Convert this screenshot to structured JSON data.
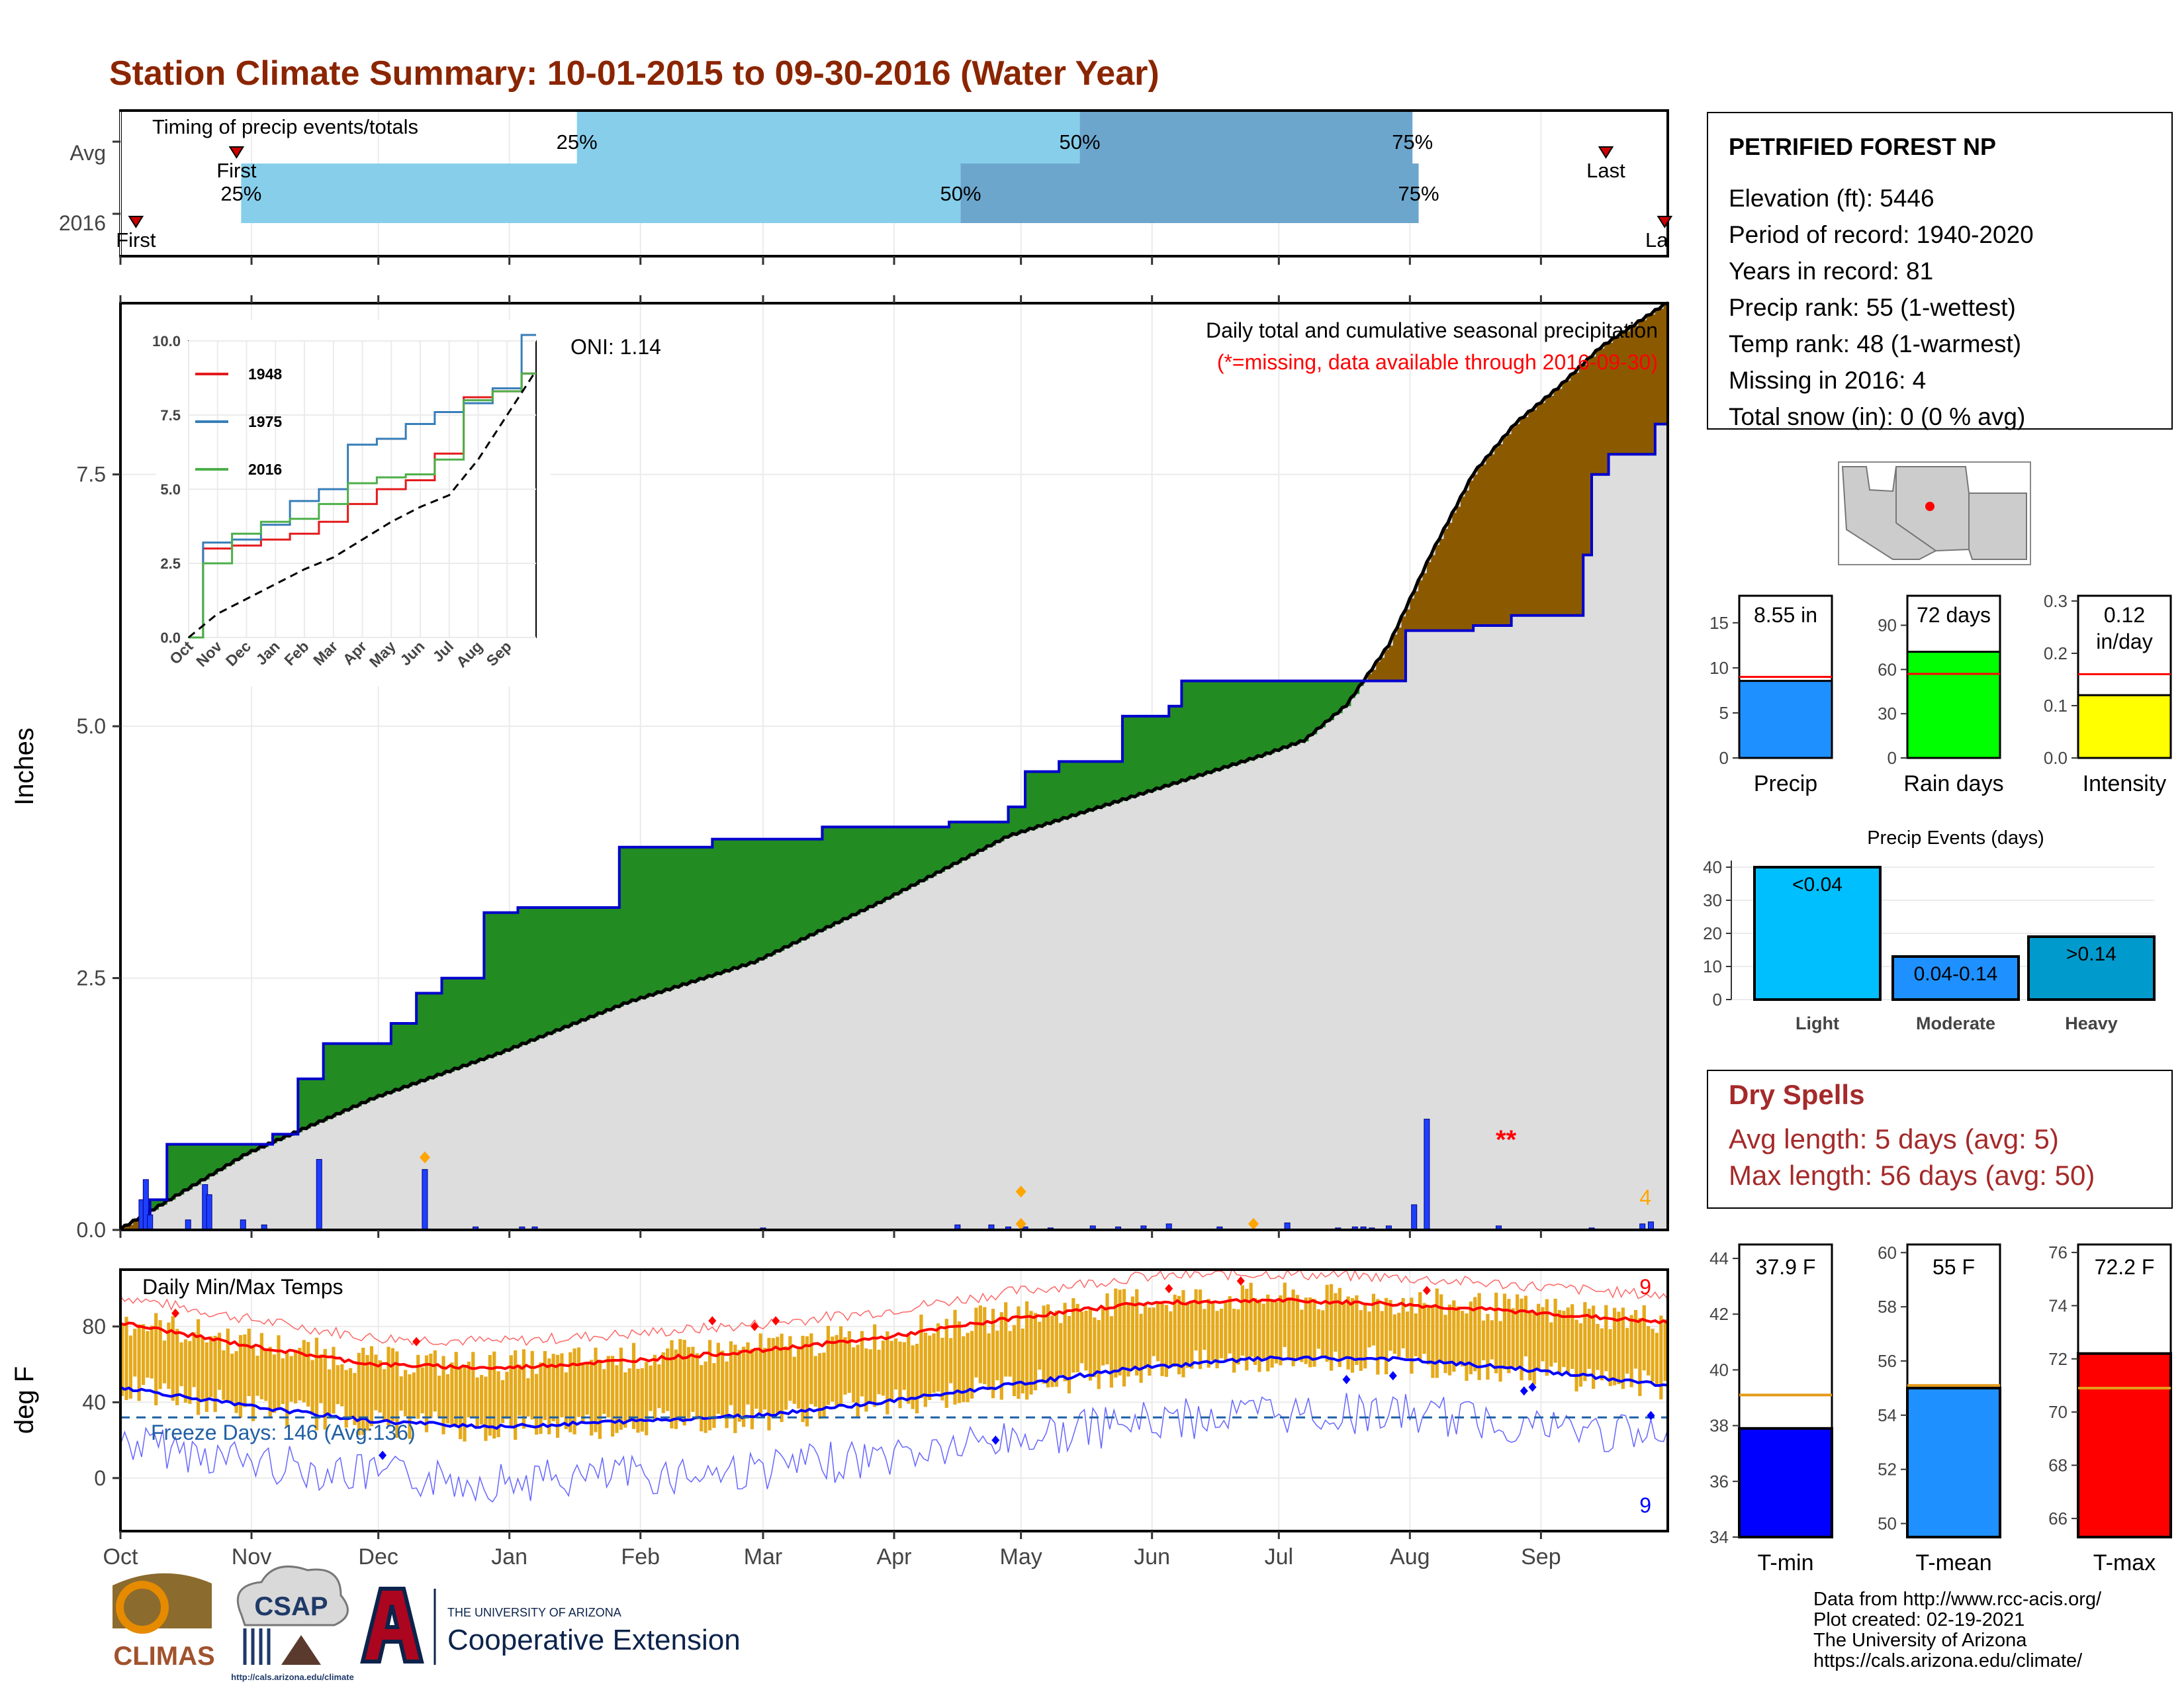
{
  "title": "Station Climate Summary: 10-01-2015 to 09-30-2016 (Water Year)",
  "colors": {
    "title": "#8B2500",
    "precip_fill": "#228B22",
    "cum_line": "#0000CD",
    "deficit_fill": "#8B5A00",
    "climo_fill": "#DDDDDD",
    "q_light": "#87CEEB",
    "q_dark": "#6CA6CD",
    "tmax": "#FF0000",
    "tmin": "#0000FF",
    "range_bar": "#E5A91A",
    "freeze": "#1F5FA6",
    "gauge_precip": "#1E90FF",
    "gauge_rain": "#00FF00",
    "gauge_intensity": "#FFFF00",
    "events": [
      "#00BFFF",
      "#1E90FF",
      "#009ACD"
    ],
    "tmin_bar": "#0000FF",
    "tmean_bar": "#1E90FF",
    "tmax_bar": "#FF0000",
    "avg_line": "#E59A1A"
  },
  "timing_panel": {
    "label": "Timing of precip events/totals",
    "rows": [
      {
        "name": "Avg",
        "first_label": "First",
        "last_label": "Last",
        "first_frac": 0.075,
        "q25_frac": 0.295,
        "q50_frac": 0.62,
        "q75_frac": 0.835,
        "last_frac": 0.96
      },
      {
        "name": "2016",
        "first_label": "First",
        "last_label": "Last",
        "first_frac": 0.01,
        "q25_frac": 0.078,
        "q50_frac": 0.543,
        "q75_frac": 0.839,
        "last_frac": 0.998
      }
    ],
    "q_labels": [
      "25%",
      "50%",
      "75%"
    ]
  },
  "main_chart": {
    "title": "Daily total and cumulative seasonal precipitation",
    "subtitle": "(*=missing, data available through 2016-09-30)",
    "oni_label": "ONI: 1.14",
    "ylabel": "Inches",
    "ylim": [
      0,
      9.2
    ],
    "yticks": [
      "0.0",
      "2.5",
      "5.0",
      "7.5"
    ],
    "missing_marker": "**",
    "missing_count": "4",
    "months": [
      "Oct",
      "Nov",
      "Dec",
      "Jan",
      "Feb",
      "Mar",
      "Apr",
      "May",
      "Jun",
      "Jul",
      "Aug",
      "Sep"
    ]
  },
  "chart_data": [
    {
      "type": "area",
      "name": "cumulative precipitation",
      "x": [
        0,
        5,
        7,
        11,
        36,
        42,
        48,
        64,
        70,
        76,
        86,
        94,
        118,
        140,
        166,
        176,
        180,
        196,
        210,
        214,
        222,
        237,
        248,
        251,
        254,
        301,
        304,
        320,
        329,
        346,
        348,
        352,
        363,
        366
      ],
      "values": [
        0.0,
        0.1,
        0.3,
        0.85,
        0.95,
        1.5,
        1.85,
        2.05,
        2.35,
        2.5,
        3.15,
        3.2,
        3.8,
        3.88,
        4.0,
        4.0,
        4.0,
        4.05,
        4.2,
        4.55,
        4.65,
        5.1,
        5.2,
        5.45,
        5.45,
        5.45,
        5.95,
        6.0,
        6.1,
        6.7,
        7.5,
        7.7,
        8.0,
        8.5
      ],
      "climo_x": [
        0,
        30,
        60,
        90,
        120,
        150,
        180,
        210,
        240,
        270,
        280,
        290,
        300,
        310,
        320,
        330,
        340,
        350,
        366
      ],
      "climo_values": [
        0,
        0.75,
        1.3,
        1.75,
        2.25,
        2.65,
        3.25,
        3.9,
        4.3,
        4.7,
        4.85,
        5.2,
        5.8,
        6.7,
        7.5,
        8.0,
        8.35,
        8.75,
        9.2
      ],
      "bars_x": [
        5,
        6,
        7,
        16,
        20,
        21,
        29,
        34,
        47,
        72,
        84,
        95,
        98,
        152,
        198,
        206,
        210,
        214,
        220,
        230,
        236,
        242,
        248,
        260,
        276,
        288,
        292,
        294,
        296,
        300,
        306,
        309,
        326,
        348,
        360,
        362
      ],
      "bars_values": [
        0.3,
        0.5,
        0.15,
        0.1,
        0.45,
        0.35,
        0.1,
        0.05,
        0.7,
        0.6,
        0.03,
        0.03,
        0.03,
        0.02,
        0.05,
        0.05,
        0.03,
        0.03,
        0.02,
        0.04,
        0.03,
        0.04,
        0.06,
        0.03,
        0.07,
        0.02,
        0.03,
        0.03,
        0.02,
        0.04,
        0.25,
        1.1,
        0.04,
        0.02,
        0.06,
        0.08
      ],
      "ylim": [
        0,
        9.2
      ]
    },
    {
      "type": "line",
      "name": "inset cumulative comparison",
      "x_ticks": [
        "Oct",
        "Nov",
        "Dec",
        "Jan",
        "Feb",
        "Mar",
        "Apr",
        "May",
        "Jun",
        "Jul",
        "Aug",
        "Sep"
      ],
      "y_ticks": [
        "0.0",
        "2.5",
        "5.0",
        "7.5",
        "10.0"
      ],
      "ylim": [
        0,
        10
      ],
      "series": [
        {
          "name": "1948",
          "color": "#E41A1C",
          "values": [
            0,
            3.0,
            3.1,
            3.3,
            3.5,
            3.9,
            4.5,
            5.0,
            5.3,
            6.2,
            8.1,
            8.3,
            8.9
          ]
        },
        {
          "name": "1975",
          "color": "#377EB8",
          "values": [
            0,
            3.2,
            3.3,
            3.8,
            4.6,
            5.0,
            6.5,
            6.7,
            7.2,
            7.6,
            7.9,
            8.4,
            10.2
          ]
        },
        {
          "name": "2016",
          "color": "#4DAF4A",
          "values": [
            0,
            2.5,
            3.5,
            3.9,
            4.0,
            4.5,
            5.2,
            5.4,
            5.5,
            6.0,
            8.0,
            8.3,
            8.9
          ]
        },
        {
          "name": "",
          "color": "#000000",
          "values": [
            0,
            0.8,
            1.3,
            1.8,
            2.3,
            2.7,
            3.3,
            3.9,
            4.4,
            4.8,
            6.0,
            7.5,
            9.0
          ]
        }
      ]
    },
    {
      "type": "line",
      "name": "daily temperatures",
      "title": "Daily Min/Max Temps",
      "ylabel": "deg F",
      "yticks": [
        "0",
        "40",
        "80"
      ],
      "ylim": [
        -28,
        110
      ],
      "tmax_avg_x": [
        0,
        30,
        60,
        90,
        120,
        150,
        180,
        210,
        240,
        270,
        300,
        330,
        366
      ],
      "tmax_avg": [
        82,
        70,
        60,
        58,
        62,
        67,
        74,
        84,
        92,
        94,
        92,
        88,
        82
      ],
      "tmin_avg": [
        48,
        38,
        30,
        27,
        30,
        33,
        40,
        49,
        58,
        63,
        63,
        58,
        49
      ],
      "freeze_line": 32,
      "freeze_label": "Freeze Days: 146 (Avg:136)",
      "record_high_count": "9",
      "record_low_count": "9"
    }
  ],
  "station": {
    "name": "PETRIFIED FOREST NP",
    "lines": [
      "Elevation (ft): 5446",
      "Period of record: 1940-2020",
      "Years in record: 81",
      "Precip rank: 55 (1-wettest)",
      "Temp rank: 48 (1-warmest)",
      "Missing in 2016: 4",
      "Total snow (in): 0 (0 % avg)"
    ]
  },
  "gauges_precip": [
    {
      "label": "Precip",
      "value_text": "8.55 in",
      "value": 8.55,
      "avg": 9.0,
      "ymax": 18,
      "ticks": [
        "0",
        "5",
        "10",
        "15"
      ],
      "tick_vals": [
        0,
        5,
        10,
        15
      ]
    },
    {
      "label": "Rain days",
      "value_text": "72 days",
      "value": 72,
      "avg": 57,
      "ymax": 110,
      "ticks": [
        "0",
        "30",
        "60",
        "90"
      ],
      "tick_vals": [
        0,
        30,
        60,
        90
      ]
    },
    {
      "label": "Intensity",
      "value_text": "0.12",
      "value_text2": "in/day",
      "value": 0.12,
      "avg": 0.16,
      "ymax": 0.31,
      "ticks": [
        "0.0",
        "0.1",
        "0.2",
        "0.3"
      ],
      "tick_vals": [
        0,
        0.1,
        0.2,
        0.3
      ]
    }
  ],
  "events": {
    "title": "Precip Events (days)",
    "categories": [
      "Light",
      "Moderate",
      "Heavy"
    ],
    "value_labels": [
      "<0.04",
      "0.04-0.14",
      ">0.14"
    ],
    "values": [
      40,
      13,
      19
    ],
    "ticks": [
      "0",
      "10",
      "20",
      "30",
      "40"
    ]
  },
  "dry_spells": {
    "title": "Dry Spells",
    "avg_line": "Avg length: 5 days (avg: 5)",
    "max_line": "Max length: 56 days (avg: 50)"
  },
  "gauges_temp": [
    {
      "label": "T-min",
      "value_text": "37.9 F",
      "value": 37.9,
      "avg": 39.1,
      "ymin": 34,
      "ymax": 44.5,
      "ticks": [
        "34",
        "36",
        "38",
        "40",
        "42",
        "44"
      ],
      "tick_vals": [
        34,
        36,
        38,
        40,
        42,
        44
      ]
    },
    {
      "label": "T-mean",
      "value_text": "55 F",
      "value": 55.0,
      "avg": 55.1,
      "ymin": 49.5,
      "ymax": 60.3,
      "ticks": [
        "50",
        "52",
        "54",
        "56",
        "58",
        "60"
      ],
      "tick_vals": [
        50,
        52,
        54,
        56,
        58,
        60
      ]
    },
    {
      "label": "T-max",
      "value_text": "72.2 F",
      "value": 72.2,
      "avg": 70.9,
      "ymin": 65.3,
      "ymax": 76.3,
      "ticks": [
        "66",
        "68",
        "70",
        "72",
        "74",
        "76"
      ],
      "tick_vals": [
        66,
        68,
        70,
        72,
        74,
        76
      ]
    }
  ],
  "footer": {
    "credits": [
      "Data from http://www.rcc-acis.org/",
      "Plot created: 02-19-2021",
      "The University of Arizona",
      "https://cals.arizona.edu/climate/"
    ],
    "logo_climas": "CLIMAS",
    "logo_csap": "CSAP",
    "logo_csap_url": "http://cals.arizona.edu/climate",
    "uofa_small": "THE UNIVERSITY OF ARIZONA",
    "uofa_big": "Cooperative Extension"
  }
}
